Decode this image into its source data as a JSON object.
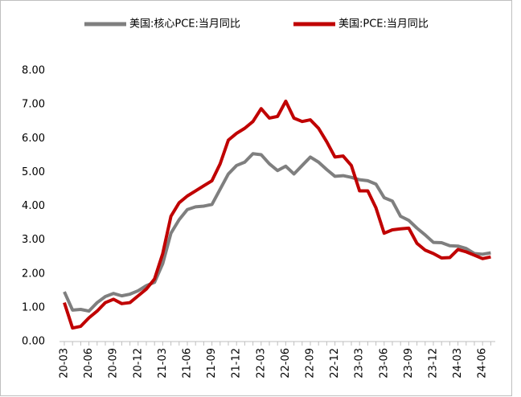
{
  "chart_data": {
    "type": "line",
    "categories": [
      "20-03",
      null,
      null,
      "20-06",
      null,
      null,
      "20-09",
      null,
      null,
      "20-12",
      null,
      null,
      "21-03",
      null,
      null,
      "21-06",
      null,
      null,
      "21-09",
      null,
      null,
      "21-12",
      null,
      null,
      "22-03",
      null,
      null,
      "22-06",
      null,
      null,
      "22-09",
      null,
      null,
      "22-12",
      null,
      null,
      "23-03",
      null,
      null,
      "23-06",
      null,
      null,
      "23-09",
      null,
      null,
      "23-12",
      null,
      null,
      "24-03",
      null,
      null,
      "24-06",
      null
    ],
    "series": [
      {
        "name": "美国:核心PCE:当月同比",
        "color": "#7f7f7f",
        "values": [
          1.47,
          0.93,
          0.95,
          0.9,
          1.15,
          1.33,
          1.42,
          1.35,
          1.4,
          1.5,
          1.65,
          1.75,
          2.3,
          3.2,
          3.6,
          3.9,
          3.98,
          4.0,
          4.05,
          4.5,
          4.95,
          5.2,
          5.3,
          5.55,
          5.52,
          5.25,
          5.05,
          5.18,
          4.95,
          5.2,
          5.45,
          5.3,
          5.08,
          4.88,
          4.9,
          4.85,
          4.78,
          4.75,
          4.65,
          4.25,
          4.15,
          3.7,
          3.58,
          3.35,
          3.15,
          2.93,
          2.92,
          2.83,
          2.82,
          2.75,
          2.6,
          2.58,
          2.62
        ]
      },
      {
        "name": "美国:PCE:当月同比",
        "color": "#c00000",
        "values": [
          1.15,
          0.4,
          0.45,
          0.7,
          0.9,
          1.15,
          1.25,
          1.12,
          1.15,
          1.35,
          1.55,
          1.85,
          2.6,
          3.7,
          4.1,
          4.3,
          4.45,
          4.6,
          4.75,
          5.25,
          5.95,
          6.15,
          6.3,
          6.5,
          6.88,
          6.6,
          6.65,
          7.1,
          6.6,
          6.5,
          6.55,
          6.3,
          5.9,
          5.45,
          5.48,
          5.2,
          4.45,
          4.45,
          3.95,
          3.2,
          3.3,
          3.33,
          3.35,
          2.9,
          2.7,
          2.6,
          2.47,
          2.48,
          2.72,
          2.65,
          2.55,
          2.45,
          2.5
        ]
      }
    ],
    "ylim": [
      0,
      8
    ],
    "yticks": [
      {
        "value": 0,
        "label": "0.00"
      },
      {
        "value": 1,
        "label": "1.00"
      },
      {
        "value": 2,
        "label": "2.00"
      },
      {
        "value": 3,
        "label": "3.00"
      },
      {
        "value": 4,
        "label": "4.00"
      },
      {
        "value": 5,
        "label": "5.00"
      },
      {
        "value": 6,
        "label": "6.00"
      },
      {
        "value": 7,
        "label": "7.00"
      },
      {
        "value": 8,
        "label": "8.00"
      }
    ],
    "grid": false,
    "legend": "top"
  }
}
